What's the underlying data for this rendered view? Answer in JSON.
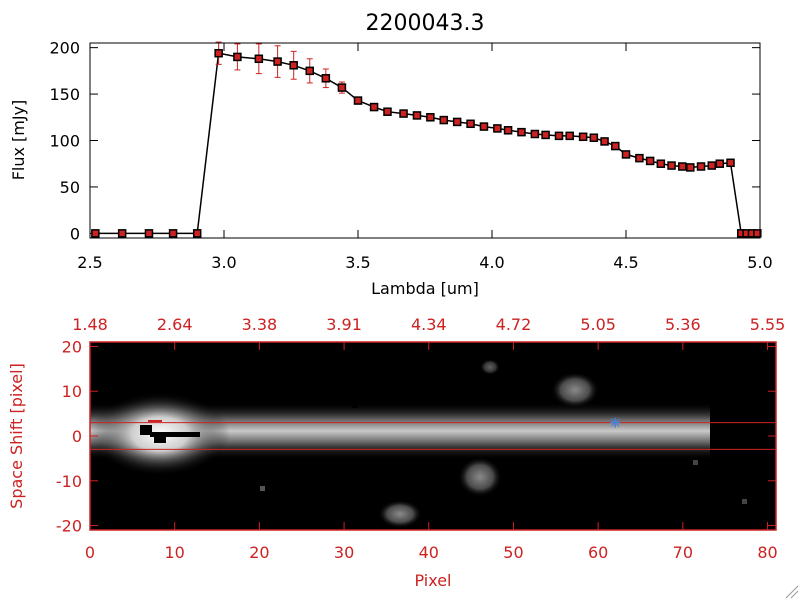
{
  "chart_data": [
    {
      "type": "line",
      "title": "2200043.3",
      "xlabel": "Lambda [um]",
      "ylabel": "Flux [mJy]",
      "xlim": [
        2.5,
        5.0
      ],
      "ylim": [
        -5,
        205
      ],
      "x_ticks": [
        "2.5",
        "3.0",
        "3.5",
        "4.0",
        "4.5",
        "5.0"
      ],
      "x_tick_values": [
        2.5,
        3.0,
        3.5,
        4.0,
        4.5,
        5.0
      ],
      "y_ticks": [
        "0",
        "50",
        "100",
        "150",
        "200"
      ],
      "y_tick_values": [
        0,
        50,
        100,
        150,
        200
      ],
      "series": [
        {
          "x": [
            2.52,
            2.62,
            2.72,
            2.81,
            2.9,
            2.98,
            3.05,
            3.13,
            3.2,
            3.26,
            3.32,
            3.38,
            3.44,
            3.5,
            3.56,
            3.61,
            3.67,
            3.72,
            3.77,
            3.82,
            3.87,
            3.92,
            3.97,
            4.02,
            4.06,
            4.11,
            4.16,
            4.2,
            4.25,
            4.29,
            4.34,
            4.38,
            4.42,
            4.46,
            4.5,
            4.55,
            4.59,
            4.63,
            4.67,
            4.71,
            4.74,
            4.78,
            4.82,
            4.85,
            4.89,
            4.93,
            4.95,
            4.97,
            4.99
          ],
          "y": [
            0,
            0,
            0,
            0,
            0,
            194,
            190,
            188,
            185,
            181,
            175,
            167,
            157,
            143,
            136,
            131,
            129,
            127,
            125,
            122,
            120,
            118,
            115,
            113,
            111,
            109,
            107,
            106,
            105,
            105,
            104,
            103,
            99,
            94,
            85,
            81,
            78,
            75,
            73,
            72,
            71,
            72,
            73,
            75,
            76,
            0,
            0,
            0,
            0
          ],
          "yerr": [
            0,
            0,
            0,
            0,
            0,
            12,
            14,
            16,
            17,
            15,
            13,
            10,
            6,
            3,
            2,
            2,
            2,
            2,
            2,
            2,
            2,
            2,
            2,
            2,
            2,
            2,
            2,
            2,
            2,
            2,
            2,
            2,
            2,
            2,
            2,
            2,
            2,
            2,
            2,
            2,
            2,
            2,
            2,
            2,
            2,
            0,
            0,
            0,
            0
          ],
          "line_color": "#000000",
          "marker_color": "#cc2222",
          "errorbar_color": "#cc2222"
        }
      ]
    },
    {
      "type": "heatmap",
      "xlabel": "Pixel",
      "ylabel": "Space Shift [pixel]",
      "xlim": [
        0,
        81
      ],
      "ylim": [
        -21,
        21
      ],
      "x_ticks": [
        "0",
        "10",
        "20",
        "30",
        "40",
        "50",
        "60",
        "70",
        "80"
      ],
      "x_tick_values": [
        0,
        10,
        20,
        30,
        40,
        50,
        60,
        70,
        80
      ],
      "y_ticks": [
        "20",
        "10",
        "0",
        "-10",
        "-20"
      ],
      "y_tick_values": [
        20,
        10,
        0,
        -10,
        -20
      ],
      "top_axis_labels": [
        "1.48",
        "2.64",
        "3.38",
        "3.91",
        "4.34",
        "4.72",
        "5.05",
        "5.36",
        "5.55"
      ],
      "top_axis_values": [
        0,
        10,
        20,
        30,
        40,
        50,
        60,
        70,
        80
      ],
      "extraction_lines_y": [
        3,
        -3
      ],
      "marker": {
        "x": 62,
        "y": 3,
        "symbol": "star",
        "color": "#4a7fd6"
      },
      "axis_color": "#cc2222",
      "line_color": "#cc2222"
    }
  ]
}
